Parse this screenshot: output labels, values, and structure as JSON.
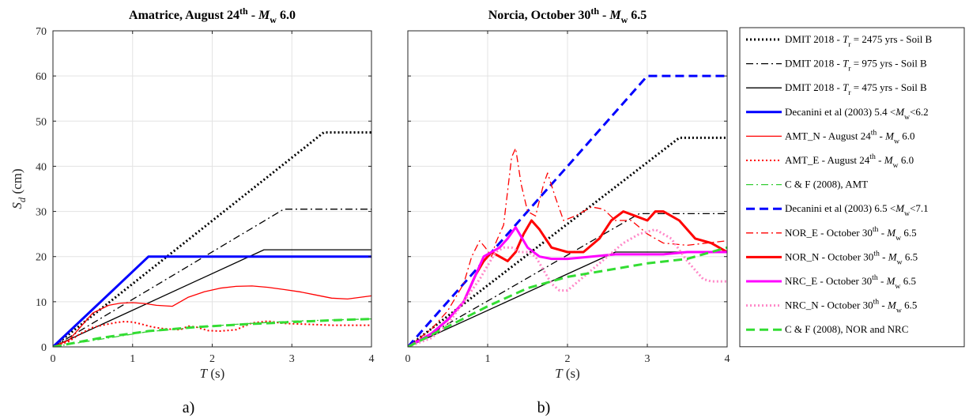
{
  "chart_data": [
    {
      "type": "line",
      "panel_label": "a)",
      "title": "Amatrice, August 24 th - M w 6.0",
      "title_parts": {
        "pre": "Amatrice, August 24",
        "sup": "th",
        "mid": " - ",
        "ital": "M",
        "sub": "w",
        "post": " 6.0"
      },
      "xlabel": "T (s)",
      "ylabel": "S d (cm)",
      "xlim": [
        0,
        4
      ],
      "ylim": [
        0,
        70
      ],
      "xticks": [
        "0",
        "1",
        "2",
        "3",
        "4"
      ],
      "yticks": [
        "0",
        "10",
        "20",
        "30",
        "40",
        "50",
        "60",
        "70"
      ],
      "grid": true,
      "series": [
        {
          "name": "DMIT 2018 - Tr = 2475 yrs - Soil B",
          "color": "#000000",
          "style": "dot-thick",
          "x": [
            0,
            3.4,
            4
          ],
          "y": [
            0,
            47.5,
            47.5
          ]
        },
        {
          "name": "DMIT 2018 - Tr = 975 yrs - Soil B",
          "color": "#000000",
          "style": "dashdot",
          "x": [
            0,
            2.9,
            4
          ],
          "y": [
            0,
            30.5,
            30.5
          ]
        },
        {
          "name": "DMIT 2018 - Tr = 475 yrs - Soil B",
          "color": "#000000",
          "style": "solid",
          "x": [
            0,
            2.65,
            4
          ],
          "y": [
            0,
            21.5,
            21.5
          ]
        },
        {
          "name": "Decanini et al (2003) 5.4 <Mw<6.2",
          "color": "#0000ff",
          "style": "solid-thick",
          "x": [
            0,
            1.2,
            4
          ],
          "y": [
            0,
            20,
            20
          ]
        },
        {
          "name": "AMT_N - August 24th - Mw 6.0",
          "color": "#ff0000",
          "style": "solid",
          "x": [
            0,
            0.2,
            0.35,
            0.5,
            0.7,
            0.85,
            1.0,
            1.15,
            1.3,
            1.5,
            1.7,
            1.9,
            2.1,
            2.3,
            2.5,
            2.7,
            2.9,
            3.1,
            3.3,
            3.5,
            3.7,
            4.0
          ],
          "y": [
            0,
            1.5,
            4.5,
            7.5,
            9.2,
            9.7,
            9.8,
            9.6,
            9.2,
            9.0,
            11.0,
            12.2,
            13.0,
            13.4,
            13.5,
            13.2,
            12.7,
            12.2,
            11.5,
            10.8,
            10.6,
            11.3
          ]
        },
        {
          "name": "AMT_E - August 24th - Mw 6.0",
          "color": "#ff0000",
          "style": "dot",
          "x": [
            0,
            0.2,
            0.35,
            0.5,
            0.65,
            0.8,
            0.9,
            1.0,
            1.1,
            1.25,
            1.4,
            1.6,
            1.7,
            1.8,
            1.95,
            2.1,
            2.3,
            2.5,
            2.7,
            2.9,
            3.2,
            3.5,
            4.0
          ],
          "y": [
            0,
            1.2,
            3.0,
            4.3,
            4.9,
            5.4,
            5.6,
            5.5,
            5.1,
            4.4,
            4.0,
            3.8,
            4.6,
            4.4,
            3.6,
            3.5,
            3.8,
            5.3,
            5.7,
            5.2,
            5.0,
            4.8,
            4.8
          ]
        },
        {
          "name": "C & F (2008), AMT",
          "color": "#33cc33",
          "style": "dashdot",
          "x": [
            0,
            1.2,
            2.2,
            3.0,
            4.0
          ],
          "y": [
            0,
            3.4,
            4.9,
            5.7,
            6.2
          ]
        },
        {
          "name": "C & F (2008) AMT bold",
          "legend": false,
          "color": "#33dd33",
          "style": "dash-thick",
          "x": [
            0,
            0.6,
            1.2,
            1.8,
            2.4,
            3.0,
            3.5,
            4.0
          ],
          "y": [
            0,
            2.0,
            3.5,
            4.4,
            5.0,
            5.5,
            5.9,
            6.2
          ]
        }
      ]
    },
    {
      "type": "line",
      "panel_label": "b)",
      "title": "Norcia, October 30 th - M w 6.5",
      "title_parts": {
        "pre": "Norcia, October 30",
        "sup": "th",
        "mid": " - ",
        "ital": "M",
        "sub": "w",
        "post": " 6.5"
      },
      "xlabel": "T (s)",
      "xlim": [
        0,
        4
      ],
      "ylim": [
        0,
        70
      ],
      "xticks": [
        "0",
        "1",
        "2",
        "3",
        "4"
      ],
      "grid": true,
      "series": [
        {
          "name": "DMIT 2018 - Tr = 2475 yrs - Soil B",
          "color": "#000000",
          "style": "dot-thick",
          "x": [
            0,
            3.4,
            4
          ],
          "y": [
            0,
            46.3,
            46.3
          ]
        },
        {
          "name": "DMIT 2018 - Tr = 975 yrs - Soil B",
          "color": "#000000",
          "style": "dashdot",
          "x": [
            0,
            2.9,
            4
          ],
          "y": [
            0,
            29.5,
            29.5
          ]
        },
        {
          "name": "DMIT 2018 - Tr = 475 yrs - Soil B",
          "color": "#000000",
          "style": "solid",
          "x": [
            0,
            2.6,
            4
          ],
          "y": [
            0,
            21,
            21
          ]
        },
        {
          "name": "Decanini et al (2003) 6.5 <Mw<7.1",
          "color": "#0000ff",
          "style": "dash-thick",
          "x": [
            0,
            3.0,
            4
          ],
          "y": [
            0,
            60,
            60
          ]
        },
        {
          "name": "NOR_E - October 30th - Mw 6.5",
          "color": "#ff0000",
          "style": "dashdot",
          "x": [
            0,
            0.3,
            0.5,
            0.7,
            0.8,
            0.9,
            0.97,
            1.05,
            1.1,
            1.2,
            1.3,
            1.35,
            1.42,
            1.5,
            1.6,
            1.7,
            1.75,
            1.85,
            1.95,
            2.1,
            2.3,
            2.45,
            2.6,
            2.8,
            3.0,
            3.2,
            3.5,
            4.0
          ],
          "y": [
            0,
            4,
            8,
            14,
            20,
            23.5,
            22,
            20,
            23,
            27,
            42,
            44,
            36,
            30,
            29,
            36,
            38.5,
            33,
            28,
            29,
            31,
            30.5,
            28,
            28,
            25,
            23,
            22.5,
            23.5
          ]
        },
        {
          "name": "NOR_N - October 30th - Mw 6.5",
          "color": "#ff0000",
          "style": "solid-thick",
          "x": [
            0,
            0.3,
            0.5,
            0.7,
            0.85,
            0.95,
            1.05,
            1.15,
            1.25,
            1.35,
            1.45,
            1.55,
            1.65,
            1.8,
            2.0,
            2.2,
            2.4,
            2.55,
            2.7,
            2.85,
            3.0,
            3.1,
            3.2,
            3.4,
            3.6,
            3.8,
            4.0
          ],
          "y": [
            0,
            3,
            6,
            10,
            16,
            19,
            21,
            20,
            19,
            21,
            25,
            28,
            26,
            22,
            21,
            21,
            24,
            28,
            30,
            29,
            28,
            30,
            30,
            28,
            24,
            23,
            21
          ]
        },
        {
          "name": "NRC_E - October 30th - Mw 6.5",
          "color": "#ff00ff",
          "style": "solid-thick",
          "x": [
            0,
            0.3,
            0.5,
            0.7,
            0.85,
            0.95,
            1.05,
            1.15,
            1.25,
            1.35,
            1.5,
            1.65,
            1.8,
            2.0,
            2.3,
            2.6,
            2.9,
            3.2,
            3.5,
            3.8,
            4.0
          ],
          "y": [
            0,
            3,
            6,
            10,
            16,
            20,
            21,
            22,
            24,
            26.5,
            22,
            20,
            19.5,
            19.5,
            20,
            20.5,
            20.5,
            20.5,
            21,
            21,
            21
          ]
        },
        {
          "name": "NRC_N - October 30th - Mw 6.5",
          "color": "#ff88c8",
          "style": "dot-thick",
          "x": [
            0,
            0.3,
            0.5,
            0.7,
            0.9,
            1.0,
            1.1,
            1.2,
            1.3,
            1.4,
            1.5,
            1.6,
            1.7,
            1.8,
            1.9,
            2.0,
            2.1,
            2.3,
            2.5,
            2.7,
            2.9,
            3.1,
            3.3,
            3.5,
            3.7,
            3.8,
            4.0
          ],
          "y": [
            0,
            2,
            5,
            10,
            15,
            18,
            21,
            22,
            22,
            21,
            21,
            20,
            17,
            14,
            12.5,
            12.5,
            14,
            17,
            20,
            23,
            25,
            26,
            24,
            19,
            15,
            14.5,
            14.5
          ]
        },
        {
          "name": "C & F (2008), NOR and NRC",
          "color": "#33dd33",
          "style": "dash-thick",
          "x": [
            0,
            0.5,
            1.0,
            1.5,
            2.0,
            2.5,
            3.0,
            3.5,
            4.0
          ],
          "y": [
            0,
            4.5,
            9,
            13,
            15.5,
            17,
            18.5,
            19.5,
            22
          ]
        }
      ]
    }
  ],
  "legend": {
    "placement": "right",
    "entries": [
      {
        "pre": "DMIT 2018 - ",
        "ital": "T",
        "sub": "r",
        "post": " = 2475 yrs - Soil B",
        "color": "#000000",
        "style": "dot-thick"
      },
      {
        "pre": "DMIT 2018 - ",
        "ital": "T",
        "sub": "r",
        "post": " = 975 yrs - Soil B",
        "color": "#000000",
        "style": "dashdot"
      },
      {
        "pre": "DMIT 2018 - ",
        "ital": "T",
        "sub": "r",
        "post": " = 475 yrs - Soil B",
        "color": "#000000",
        "style": "solid"
      },
      {
        "pre": "Decanini et al (2003) 5.4 <",
        "ital": "M",
        "sub": "w",
        "post": "<6.2",
        "color": "#0000ff",
        "style": "solid-thick"
      },
      {
        "pre": "AMT_N - August 24",
        "sup": "th",
        "mid": " - ",
        "ital": "M",
        "sub": "w",
        "post": " 6.0",
        "color": "#ff0000",
        "style": "solid"
      },
      {
        "pre": "AMT_E - August 24",
        "sup": "th",
        "mid": " - ",
        "ital": "M",
        "sub": "w",
        "post": " 6.0",
        "color": "#ff0000",
        "style": "dot"
      },
      {
        "pre": "C & F (2008),  AMT",
        "color": "#33cc33",
        "style": "dashdot"
      },
      {
        "pre": "Decanini et al (2003) 6.5 <",
        "ital": "M",
        "sub": "w",
        "post": "<7.1",
        "color": "#0000ff",
        "style": "dash-thick"
      },
      {
        "pre": "NOR_E - October 30",
        "sup": "th",
        "mid": " - ",
        "ital": "M",
        "sub": "w",
        "post": "  6.5",
        "color": "#ff0000",
        "style": "dashdot"
      },
      {
        "pre": "NOR_N - October 30",
        "sup": "th",
        "mid": " - ",
        "ital": "M",
        "sub": "w",
        "post": "  6.5",
        "color": "#ff0000",
        "style": "solid-thick"
      },
      {
        "pre": "NRC_E - October 30",
        "sup": "th",
        "mid": " - ",
        "ital": "M",
        "sub": "w",
        "post": "  6.5",
        "color": "#ff00ff",
        "style": "solid-thick"
      },
      {
        "pre": "NRC_N - October 30",
        "sup": "th",
        "mid": " - ",
        "ital": "M",
        "sub": "w",
        "post": "  6.5",
        "color": "#ff88c8",
        "style": "dot-thick"
      },
      {
        "pre": "C & F (2008),  NOR and NRC",
        "color": "#33dd33",
        "style": "dash-thick"
      }
    ]
  }
}
